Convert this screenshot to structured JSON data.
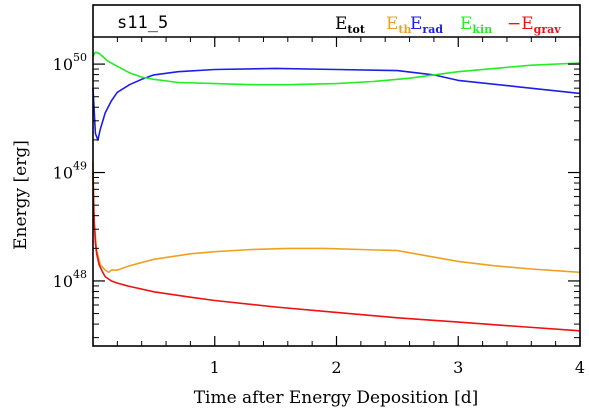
{
  "chart_data": {
    "type": "line",
    "panel_label": "s11_5",
    "xlabel": "Time after Energy Deposition [d]",
    "ylabel": "Energy [erg]",
    "xlim": [
      0,
      4
    ],
    "ylim_log10": [
      47.4,
      50.25
    ],
    "yscale": "log",
    "x_ticks": [
      1,
      2,
      3,
      4
    ],
    "x_tick_labels": [
      "1",
      "2",
      "3",
      "4"
    ],
    "y_ticks": [
      {
        "exp": 48,
        "base": "10",
        "power": "48"
      },
      {
        "exp": 49,
        "base": "10",
        "power": "49"
      },
      {
        "exp": 50,
        "base": "10",
        "power": "50"
      }
    ],
    "legend_placement": "top-right",
    "series": [
      {
        "name": "E",
        "sub": "tot",
        "color": "#000000",
        "x": [],
        "log10_y": []
      },
      {
        "name": "E",
        "sub": "th",
        "color": "#f0a020",
        "x": [
          0.0,
          0.01,
          0.03,
          0.06,
          0.1,
          0.13,
          0.15,
          0.2,
          0.3,
          0.5,
          0.8,
          1.0,
          1.3,
          1.6,
          1.9,
          2.2,
          2.5,
          2.7,
          3.0,
          3.3,
          3.6,
          4.0
        ],
        "log10_y": [
          49.1,
          48.53,
          48.28,
          48.15,
          48.1,
          48.08,
          48.1,
          48.1,
          48.14,
          48.2,
          48.25,
          48.27,
          48.29,
          48.3,
          48.3,
          48.29,
          48.28,
          48.24,
          48.18,
          48.14,
          48.11,
          48.08
        ]
      },
      {
        "name": "E",
        "sub": "rad",
        "color": "#1e1ee6",
        "x": [
          0.0,
          0.02,
          0.04,
          0.06,
          0.1,
          0.15,
          0.2,
          0.3,
          0.4,
          0.5,
          0.7,
          1.0,
          1.5,
          2.0,
          2.5,
          2.8,
          3.0,
          3.5,
          4.0
        ],
        "log10_y": [
          49.78,
          49.36,
          49.3,
          49.4,
          49.55,
          49.66,
          49.74,
          49.81,
          49.86,
          49.9,
          49.93,
          49.95,
          49.96,
          49.95,
          49.94,
          49.9,
          49.85,
          49.79,
          49.73
        ]
      },
      {
        "name": "E",
        "sub": "kin",
        "color": "#22ee22",
        "x": [
          0.0,
          0.02,
          0.05,
          0.08,
          0.12,
          0.2,
          0.3,
          0.4,
          0.5,
          0.7,
          1.0,
          1.3,
          1.6,
          2.0,
          2.3,
          2.6,
          2.8,
          3.0,
          3.3,
          3.6,
          4.0
        ],
        "log10_y": [
          50.07,
          50.11,
          50.1,
          50.07,
          50.03,
          49.98,
          49.92,
          49.88,
          49.86,
          49.83,
          49.82,
          49.81,
          49.81,
          49.82,
          49.84,
          49.87,
          49.9,
          49.93,
          49.96,
          49.99,
          50.01
        ]
      },
      {
        "name": "−E",
        "sub": "grav",
        "color": "#ee1111",
        "x": [
          0.0,
          0.005,
          0.01,
          0.02,
          0.03,
          0.05,
          0.08,
          0.1,
          0.15,
          0.2,
          0.3,
          0.5,
          0.8,
          1.0,
          1.5,
          2.0,
          2.5,
          3.0,
          3.5,
          4.0
        ],
        "log10_y": [
          49.0,
          48.7,
          48.55,
          48.35,
          48.25,
          48.15,
          48.08,
          48.04,
          48.0,
          47.98,
          47.95,
          47.9,
          47.85,
          47.82,
          47.76,
          47.71,
          47.66,
          47.62,
          47.58,
          47.54
        ]
      }
    ]
  }
}
